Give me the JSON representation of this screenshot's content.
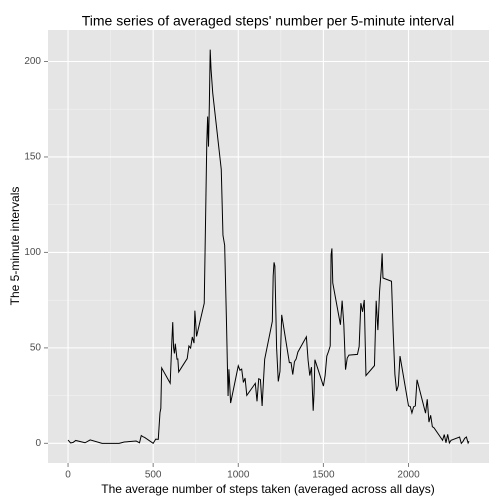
{
  "chart_data": {
    "type": "line",
    "title": "Time series of averaged steps' number per 5-minute interval",
    "x_label": "The average number of steps taken (averaged across all days)",
    "y_label": "The 5-minute intervals",
    "x": [
      0,
      15,
      30,
      45,
      100,
      130,
      200,
      230,
      300,
      330,
      400,
      420,
      430,
      440,
      450,
      500,
      515,
      530,
      540,
      545,
      550,
      600,
      610,
      615,
      620,
      625,
      630,
      640,
      645,
      650,
      700,
      710,
      720,
      730,
      740,
      745,
      755,
      800,
      810,
      815,
      820,
      825,
      830,
      835,
      840,
      850,
      900,
      910,
      920,
      930,
      935,
      940,
      945,
      955,
      1000,
      1010,
      1020,
      1030,
      1040,
      1050,
      1100,
      1110,
      1120,
      1130,
      1140,
      1145,
      1155,
      1200,
      1205,
      1210,
      1215,
      1225,
      1235,
      1245,
      1255,
      1300,
      1310,
      1320,
      1330,
      1340,
      1350,
      1400,
      1410,
      1420,
      1430,
      1440,
      1445,
      1450,
      1500,
      1510,
      1520,
      1530,
      1540,
      1545,
      1550,
      1555,
      1600,
      1610,
      1620,
      1630,
      1640,
      1650,
      1700,
      1710,
      1720,
      1730,
      1740,
      1750,
      1800,
      1810,
      1820,
      1830,
      1840,
      1845,
      1850,
      1900,
      1910,
      1920,
      1930,
      1940,
      1950,
      2000,
      2010,
      2020,
      2030,
      2040,
      2050,
      2100,
      2110,
      2120,
      2130,
      2140,
      2150,
      2200,
      2210,
      2220,
      2230,
      2240,
      2250,
      2300,
      2310,
      2320,
      2330,
      2340,
      2350,
      2355
    ],
    "series": [
      {
        "color": "#000000",
        "values": [
          1.7,
          0.2,
          0.5,
          1.5,
          0.3,
          1.8,
          0,
          0,
          0,
          0.7,
          1.2,
          0.3,
          4.1,
          3.5,
          3.1,
          0,
          2.2,
          2.1,
          16,
          18.3,
          39.5,
          31.5,
          53.8,
          63.5,
          49.9,
          47.1,
          52.2,
          44.1,
          44.2,
          37.4,
          44.4,
          51,
          49.9,
          55.7,
          52.5,
          69.5,
          56,
          73.4,
          129.4,
          157.5,
          171.2,
          155.4,
          177.3,
          206.2,
          195.9,
          183.4,
          143.5,
          109,
          103.7,
          66.2,
          45.2,
          24.8,
          38.8,
          21.1,
          40.6,
          38.3,
          38.9,
          31.9,
          34.2,
          25.1,
          31.4,
          22,
          33.8,
          33.4,
          19.6,
          28,
          44,
          63.9,
          87.7,
          94.8,
          92.8,
          50.2,
          32.4,
          37.7,
          67.3,
          42.3,
          42.3,
          36,
          42.8,
          44.2,
          47.8,
          55.8,
          43.6,
          35.5,
          39.9,
          17.1,
          26.1,
          43.8,
          30,
          35.5,
          45.7,
          48.1,
          51,
          98.7,
          102.1,
          84,
          62.1,
          74.7,
          62.1,
          38.6,
          44.7,
          46.2,
          46.6,
          50.7,
          73.4,
          68.9,
          75.1,
          35.5,
          40.7,
          74.7,
          59.3,
          79.7,
          91.2,
          99.5,
          86.6,
          84.9,
          58,
          36.1,
          27.4,
          30.2,
          45.7,
          19.6,
          19.3,
          15.9,
          19.2,
          19.6,
          33.3,
          15.8,
          23.1,
          11.1,
          14.7,
          8.7,
          8.1,
          1.6,
          4.6,
          0.3,
          4.7,
          0.2,
          1.6,
          3.3,
          0,
          1,
          2.6,
          3.3,
          0.2,
          1.1
        ]
      }
    ],
    "xlim": [
      -117.75,
      2472.75
    ],
    "xticks": [
      0,
      500,
      1000,
      1500,
      2000
    ],
    "xminor_ticks": [
      250,
      750,
      1250,
      1750,
      2250
    ],
    "ylim": [
      -10.3,
      216.5
    ],
    "yticks": [
      0,
      50,
      100,
      150,
      200
    ],
    "yminor_ticks": [
      25,
      75,
      125,
      175
    ],
    "grid": true
  }
}
